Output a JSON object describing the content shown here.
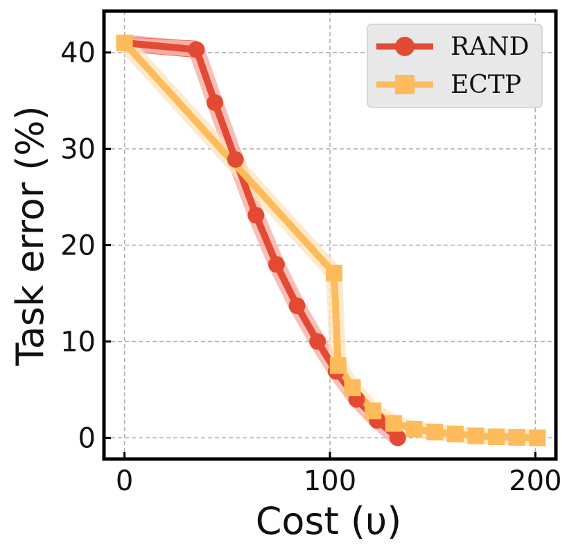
{
  "chart_data": {
    "type": "line",
    "title": "",
    "xlabel": "Cost (υ)",
    "ylabel": "Task error (%)",
    "xlim": [
      -10,
      210
    ],
    "ylim": [
      -2.2,
      44.3
    ],
    "xticks": [
      0,
      100,
      200
    ],
    "yticks": [
      0,
      10,
      20,
      30,
      40
    ],
    "grid": true,
    "legend_position": "top-right",
    "series": [
      {
        "name": "RAND",
        "color": "#e34a33",
        "band_color": "#f4a9a0",
        "marker": "circle",
        "x": [
          0,
          35,
          44,
          54,
          64,
          74,
          84,
          94,
          103,
          113,
          123,
          133
        ],
        "y": [
          41.0,
          40.3,
          34.8,
          28.9,
          23.1,
          18.0,
          13.7,
          10.0,
          6.9,
          4.0,
          1.8,
          0.0
        ],
        "band": [
          [
            41.6,
            40.1
          ],
          [
            41.2,
            39.5
          ],
          null,
          null,
          null,
          null,
          null,
          null,
          null,
          null,
          null,
          null
        ]
      },
      {
        "name": "ECTP",
        "color": "#fdbb5c",
        "band_color": "#fde4bc",
        "marker": "square",
        "x": [
          0,
          102,
          104,
          111,
          121,
          131,
          141,
          151,
          161,
          171,
          181,
          191,
          201
        ],
        "y": [
          41.0,
          17.1,
          7.5,
          5.2,
          2.8,
          1.5,
          0.9,
          0.6,
          0.4,
          0.2,
          0.1,
          0.05,
          0.0
        ],
        "band": null
      }
    ]
  }
}
